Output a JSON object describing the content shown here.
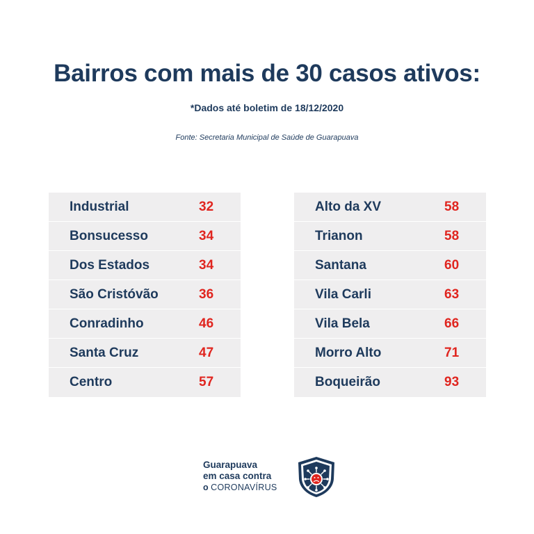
{
  "header": {
    "title": "Bairros com mais de 30 casos ativos:",
    "subtitle": "*Dados até boletim de 18/12/2020",
    "source": "Fonte: Secretaria Municipal de Saúde de Guarapuava"
  },
  "table_left": [
    {
      "name": "Industrial",
      "value": "32"
    },
    {
      "name": "Bonsucesso",
      "value": "34"
    },
    {
      "name": "Dos Estados",
      "value": "34"
    },
    {
      "name": "São Cristóvão",
      "value": "36"
    },
    {
      "name": "Conradinho",
      "value": "46"
    },
    {
      "name": "Santa Cruz",
      "value": "47"
    },
    {
      "name": "Centro",
      "value": "57"
    }
  ],
  "table_right": [
    {
      "name": "Alto da XV",
      "value": "58"
    },
    {
      "name": "Trianon",
      "value": "58"
    },
    {
      "name": "Santana",
      "value": "60"
    },
    {
      "name": "Vila Carli",
      "value": "63"
    },
    {
      "name": "Vila Bela",
      "value": "66"
    },
    {
      "name": "Morro Alto",
      "value": "71"
    },
    {
      "name": "Boqueirão",
      "value": "93"
    }
  ],
  "logo": {
    "line1": "Guarapuava",
    "line2": "em casa contra",
    "line3_a": "o",
    "line3_b": "CORONAVÍRUS",
    "icon": "shield-virus-icon"
  },
  "colors": {
    "navy": "#1e3a5c",
    "red": "#e0251f",
    "row_bg": "#efeeef"
  }
}
